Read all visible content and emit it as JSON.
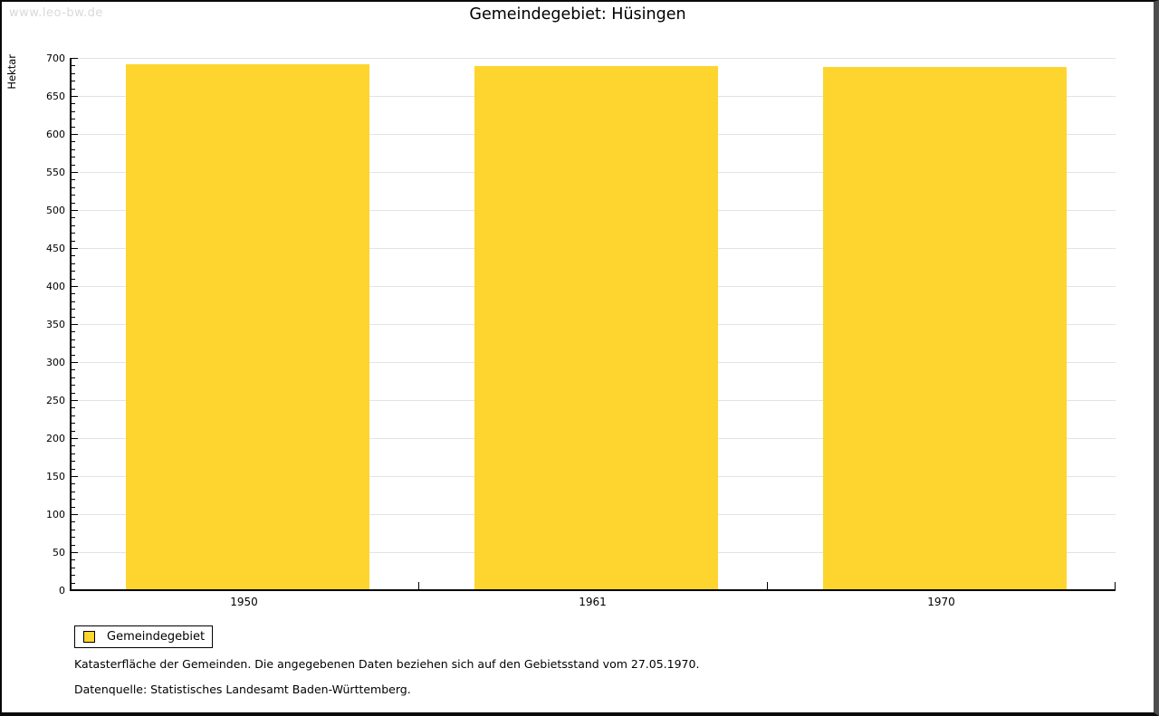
{
  "watermark": "www.leo-bw.de",
  "title": "Gemeindegebiet: Hüsingen",
  "chart_data": {
    "type": "bar",
    "title": "Gemeindegebiet: Hüsingen",
    "categories": [
      "1950",
      "1961",
      "1970"
    ],
    "series": [
      {
        "name": "Gemeindegebiet",
        "values": [
          690,
          688,
          687
        ]
      }
    ],
    "xlabel": "",
    "ylabel": "Hektar",
    "ylim": [
      0,
      700
    ],
    "ytick_step": 50,
    "ytick_minor_step": 10,
    "grid": true,
    "bar_color": "#fdd52e",
    "legend_position": "bottom-left"
  },
  "legend": {
    "items": [
      {
        "label": "Gemeindegebiet",
        "color": "#fdd52e"
      }
    ]
  },
  "footnotes": [
    "Katasterfläche der Gemeinden. Die angegebenen Daten beziehen sich auf den Gebietsstand vom 27.05.1970.",
    "Datenquelle: Statistisches Landesamt Baden-Württemberg."
  ],
  "colors": {
    "bar": "#fdd52e",
    "gridline": "#e3e3e3",
    "axis": "#000000",
    "watermark": "#d9d9d9",
    "background": "#ffffff"
  }
}
